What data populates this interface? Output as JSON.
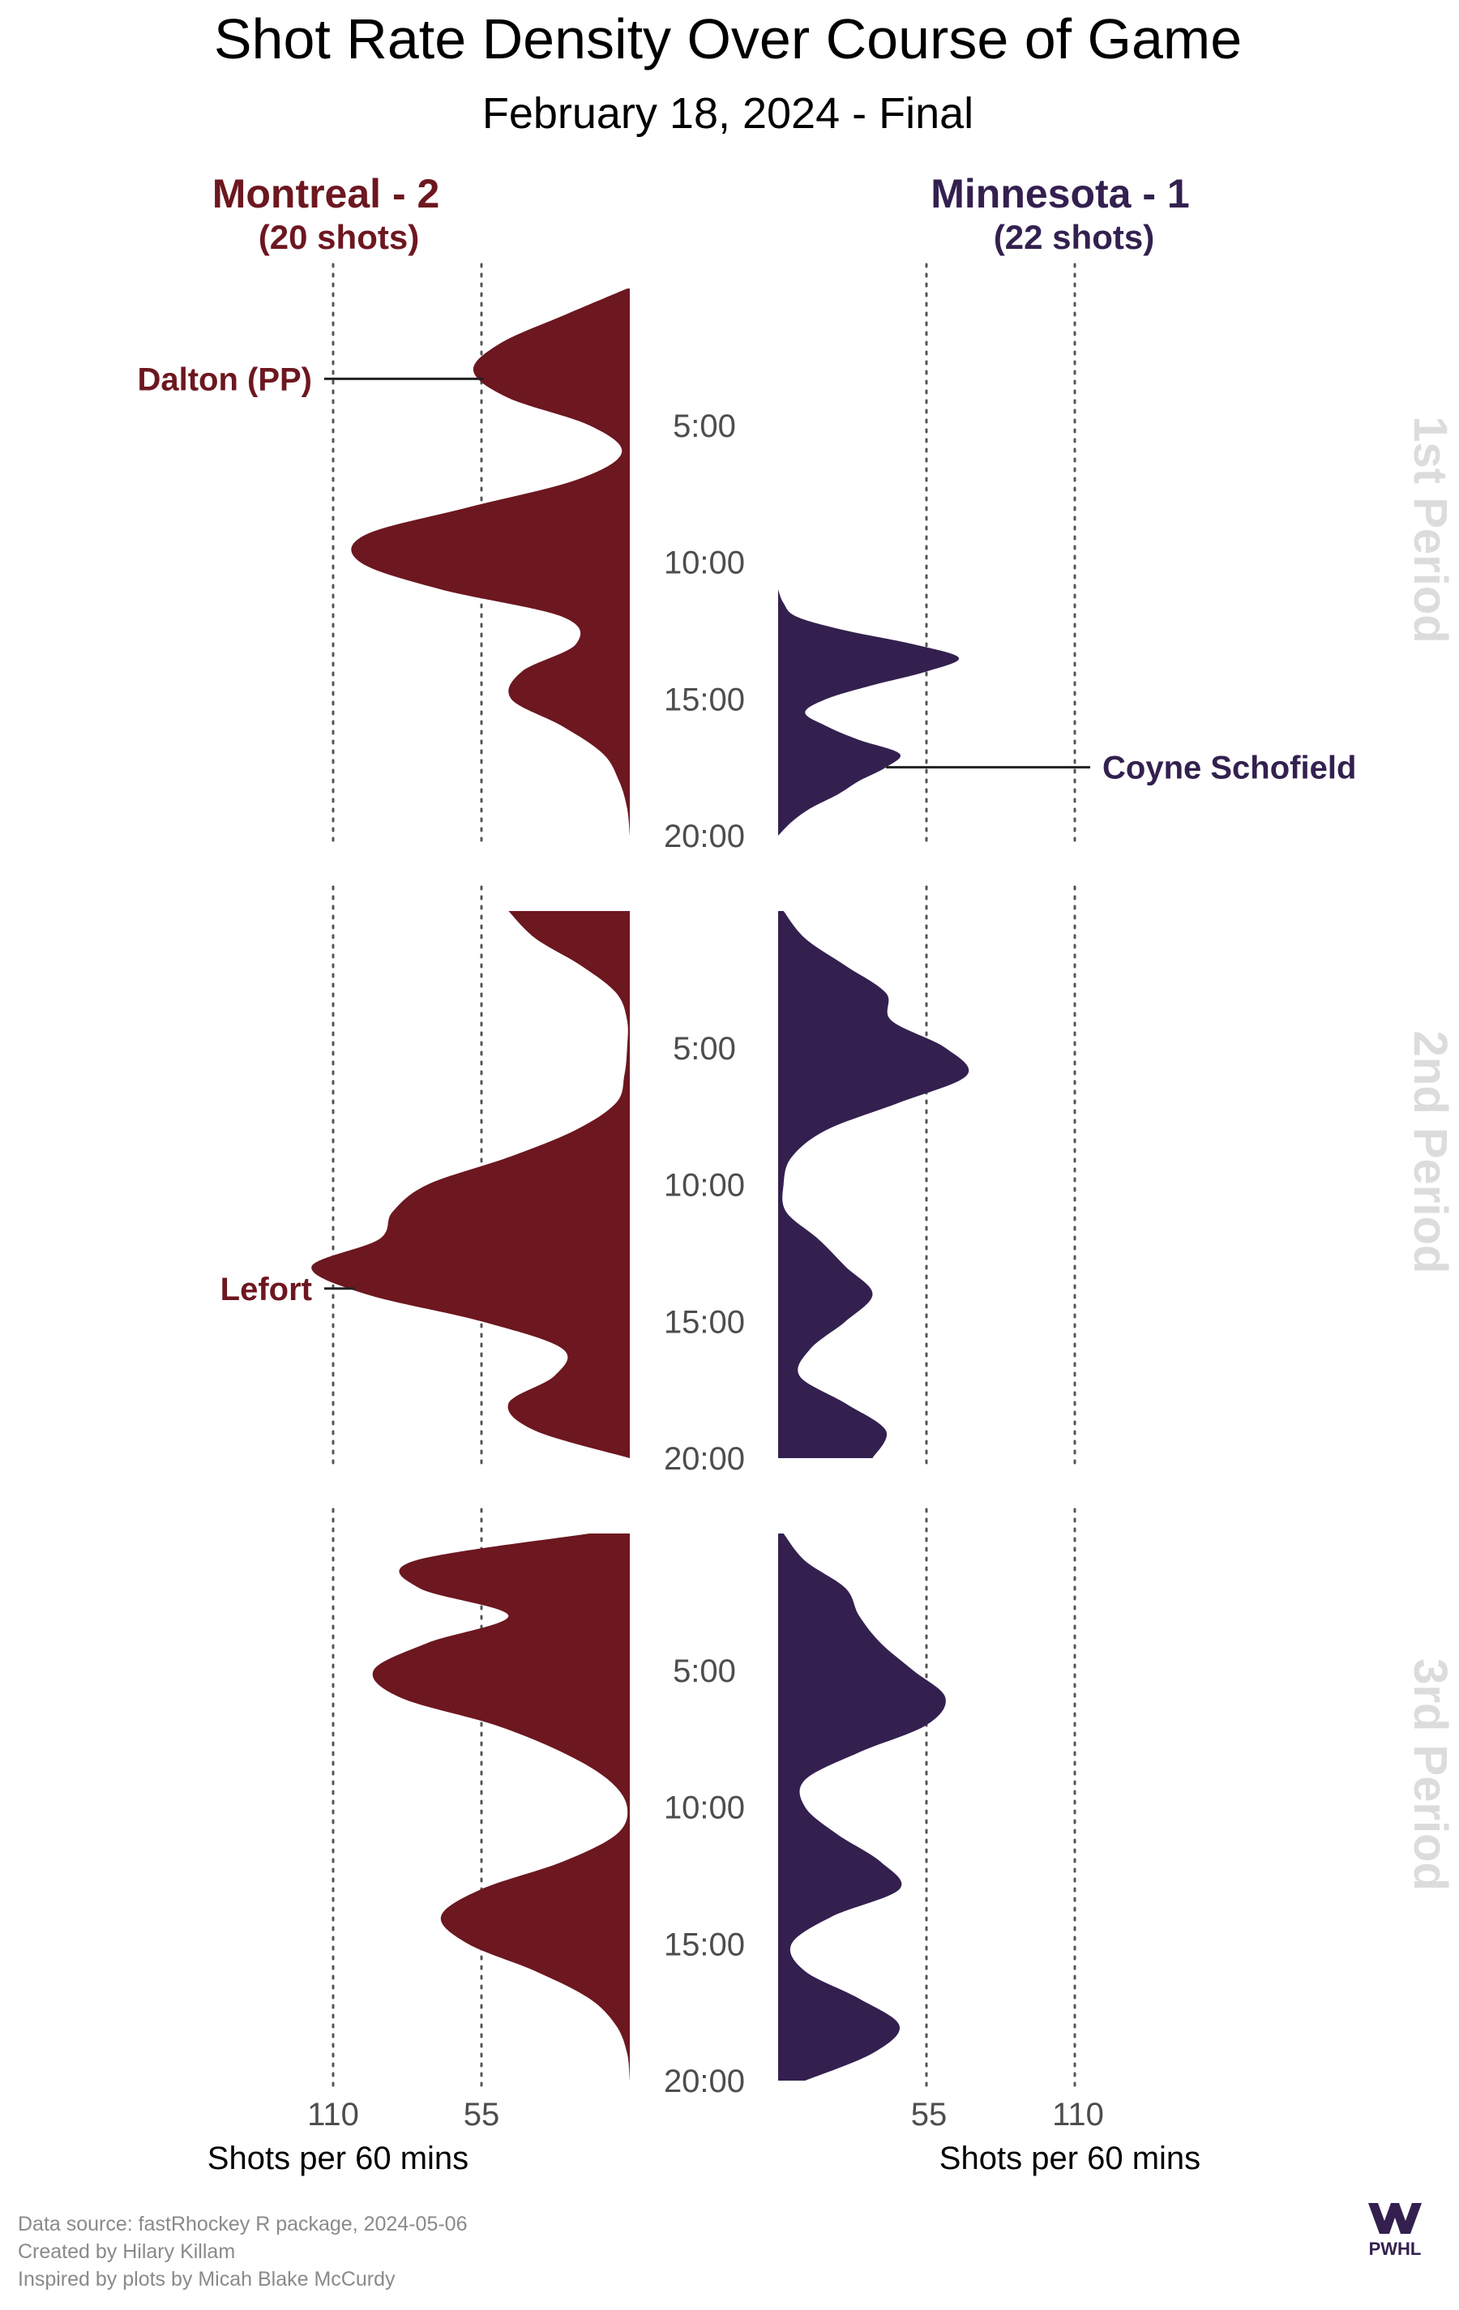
{
  "header": {
    "title": "Shot Rate Density Over Course of Game",
    "subtitle": "February 18, 2024 - Final"
  },
  "teams": {
    "home": {
      "label": "Montreal - 2",
      "shots": "(20 shots)",
      "color": "#6d1720"
    },
    "away": {
      "label": "Minnesota - 1",
      "shots": "(22 shots)",
      "color": "#33204f"
    }
  },
  "periods": [
    "1st Period",
    "2nd Period",
    "3rd Period"
  ],
  "time_ticks": [
    "5:00",
    "10:00",
    "15:00",
    "20:00"
  ],
  "axis": {
    "ticks_left": [
      "110",
      "55"
    ],
    "ticks_right": [
      "55",
      "110"
    ],
    "title_left": "Shots per 60 mins",
    "title_right": "Shots per 60 mins"
  },
  "caption": {
    "line1": "Data source: fastRhockey R package, 2024-05-06",
    "line2": "Created by Hilary Killam",
    "line3": "Inspired by plots by Micah Blake McCurdy"
  },
  "logo": {
    "text": "PWHL",
    "color": "#33204f"
  },
  "chart_data": {
    "type": "area",
    "description_units": "x = minute of period (0-20), y = shots per 60 mins",
    "axis_ticks": [
      55,
      110
    ],
    "time_ticks_min": [
      5,
      10,
      15,
      20
    ],
    "series": [
      {
        "team": "Montreal - 2",
        "side": "left",
        "periods": [
          {
            "period": "1st Period",
            "x": [
              0,
              1,
              2,
              3,
              4,
              5,
              6,
              7,
              8,
              9,
              10,
              11,
              12,
              13,
              14,
              15,
              16,
              17,
              18,
              19,
              20
            ],
            "y": [
              1,
              25,
              48,
              58,
              45,
              15,
              3,
              20,
              60,
              98,
              100,
              70,
              25,
              20,
              40,
              44,
              25,
              10,
              4,
              1,
              0
            ]
          },
          {
            "period": "2nd Period",
            "x": [
              0,
              1,
              2,
              3,
              4,
              5,
              6,
              7,
              8,
              9,
              10,
              11,
              12,
              13,
              14,
              15,
              16,
              17,
              18,
              19,
              20
            ],
            "y": [
              45,
              35,
              18,
              5,
              1,
              1,
              2,
              5,
              20,
              45,
              75,
              88,
              93,
              118,
              98,
              55,
              25,
              28,
              45,
              35,
              0
            ]
          },
          {
            "period": "3rd Period",
            "x": [
              0,
              1,
              2,
              3,
              4,
              5,
              6,
              7,
              8,
              9,
              10,
              11,
              12,
              13,
              14,
              15,
              16,
              17,
              18,
              19,
              20
            ],
            "y": [
              15,
              80,
              78,
              45,
              75,
              95,
              85,
              50,
              25,
              8,
              1,
              5,
              25,
              55,
              70,
              60,
              35,
              15,
              5,
              1,
              0
            ]
          }
        ]
      },
      {
        "team": "Minnesota - 1",
        "side": "right",
        "periods": [
          {
            "period": "1st Period",
            "x": [
              11,
              11.5,
              12,
              12.5,
              13,
              13.5,
              14,
              14.5,
              15,
              15.5,
              16,
              16.5,
              17,
              17.5,
              18,
              18.5,
              19,
              19.5,
              20
            ],
            "y": [
              0,
              2,
              7,
              25,
              50,
              67,
              55,
              35,
              18,
              10,
              18,
              30,
              45,
              40,
              30,
              22,
              12,
              5,
              0
            ]
          },
          {
            "period": "2nd Period",
            "x": [
              0,
              1,
              2,
              3,
              4,
              5,
              6,
              7,
              8,
              9,
              10,
              11,
              12,
              13,
              14,
              15,
              16,
              17,
              18,
              19,
              20
            ],
            "y": [
              2,
              10,
              25,
              40,
              42,
              62,
              70,
              45,
              18,
              5,
              2,
              3,
              15,
              25,
              35,
              25,
              12,
              8,
              25,
              40,
              35
            ]
          },
          {
            "period": "3rd Period",
            "x": [
              0,
              1,
              2,
              3,
              4,
              5,
              6,
              7,
              8,
              9,
              10,
              11,
              12,
              13,
              14,
              15,
              16,
              17,
              18,
              19,
              20
            ],
            "y": [
              2,
              10,
              25,
              30,
              38,
              50,
              62,
              55,
              30,
              10,
              10,
              22,
              38,
              45,
              20,
              5,
              10,
              30,
              45,
              35,
              10
            ]
          }
        ]
      }
    ],
    "annotations": [
      {
        "label": "Dalton (PP)",
        "team": "Montreal - 2",
        "period": "1st Period",
        "minute": 3.3
      },
      {
        "label": "Coyne Schofield",
        "team": "Minnesota - 1",
        "period": "1st Period",
        "minute": 17.5
      },
      {
        "label": "Lefort",
        "team": "Montreal - 2",
        "period": "2nd Period",
        "minute": 13.8
      }
    ]
  }
}
